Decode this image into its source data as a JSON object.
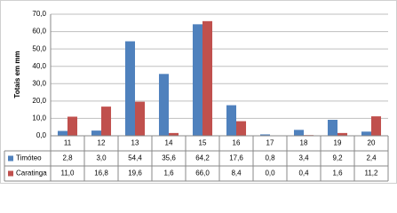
{
  "chart_data": {
    "type": "bar",
    "y_label": "Totais em mm",
    "categories": [
      "11",
      "12",
      "13",
      "14",
      "15",
      "16",
      "17",
      "18",
      "19",
      "20"
    ],
    "series": [
      {
        "name": "Timóteo",
        "color": "#4f81bd",
        "values": [
          2.8,
          3.0,
          54.4,
          35.6,
          64.2,
          17.6,
          0.8,
          3.4,
          9.2,
          2.4
        ],
        "value_labels": [
          "2,8",
          "3,0",
          "54,4",
          "35,6",
          "64,2",
          "17,6",
          "0,8",
          "3,4",
          "9,2",
          "2,4"
        ]
      },
      {
        "name": "Caratinga",
        "color": "#c0504d",
        "values": [
          11.0,
          16.8,
          19.6,
          1.6,
          66.0,
          8.4,
          0.0,
          0.4,
          1.6,
          11.2
        ],
        "value_labels": [
          "11,0",
          "16,8",
          "19,6",
          "1,6",
          "66,0",
          "8,4",
          "0,0",
          "0,4",
          "1,6",
          "11,2"
        ]
      }
    ],
    "ylim": [
      0,
      70
    ],
    "yticks": [
      {
        "value": 0,
        "label": "0,0"
      },
      {
        "value": 10,
        "label": "10,0"
      },
      {
        "value": 20,
        "label": "20,0"
      },
      {
        "value": 30,
        "label": "30,0"
      },
      {
        "value": 40,
        "label": "40,0"
      },
      {
        "value": 50,
        "label": "50,0"
      },
      {
        "value": 60,
        "label": "60,0"
      },
      {
        "value": 70,
        "label": "70,0"
      }
    ],
    "grid": true
  }
}
